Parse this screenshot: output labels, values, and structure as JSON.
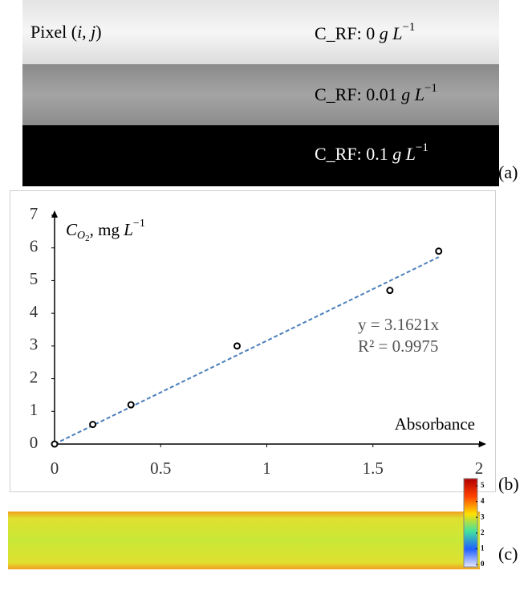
{
  "panel_a": {
    "pixel_label": {
      "prefix": "Pixel (",
      "coords": "i, j",
      "suffix": ")"
    },
    "strips": [
      {
        "prefix": "C_RF: 0 ",
        "unit": "g L",
        "exponent": "−1"
      },
      {
        "prefix": "C_RF: 0.01 ",
        "unit": "g L",
        "exponent": "−1"
      },
      {
        "prefix": "C_RF: 0.1 ",
        "unit": "g L",
        "exponent": "−1"
      }
    ],
    "label": "(a)"
  },
  "chart_data": {
    "type": "scatter",
    "ylabel": {
      "symbol": "C",
      "subscript": "O",
      "sub_subscript": "2",
      "unit": ", mg ",
      "unit_italic": "L",
      "exponent": "−1"
    },
    "xlabel": "Absorbance",
    "x": [
      0,
      0.18,
      0.36,
      0.86,
      1.58,
      1.81
    ],
    "values": [
      0,
      0.6,
      1.2,
      3.0,
      4.7,
      5.9
    ],
    "color": "#000000",
    "trendline": {
      "equation": "y = 3.1621x",
      "r_squared": "R² = 0.9975",
      "x": [
        0,
        1.81
      ],
      "values": [
        0,
        5.72
      ],
      "color": "#4a7ebb"
    },
    "xlim": [
      0,
      2
    ],
    "xticks": [
      0,
      0.5,
      1,
      1.5,
      2
    ],
    "ylim": [
      0,
      7
    ],
    "yticks": [
      0,
      1,
      2,
      3,
      4,
      5,
      6,
      7
    ],
    "label": "(b)"
  },
  "panel_c": {
    "colorbar_ticks": [
      0,
      1,
      2,
      3,
      4,
      5
    ],
    "label": "(c)"
  }
}
